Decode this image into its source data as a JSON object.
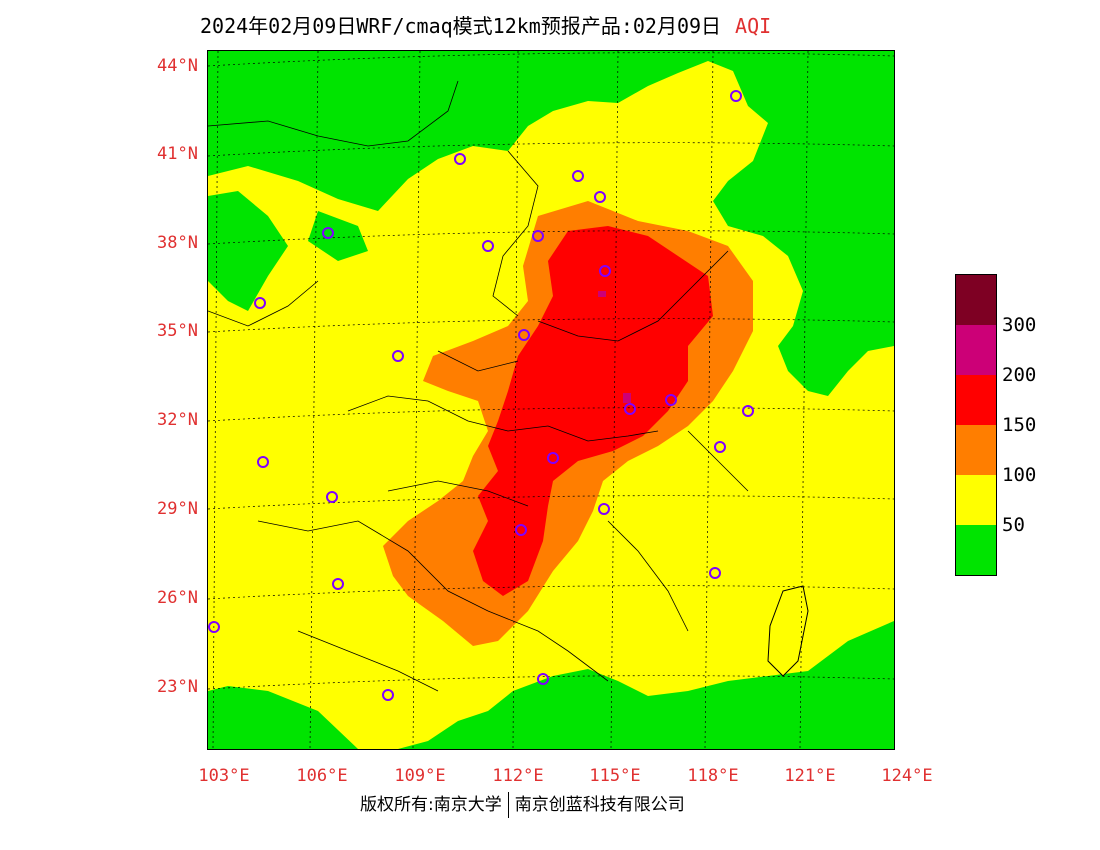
{
  "title": {
    "main": "2024年02月09日WRF/cmaq模式12km预报产品:02月09日",
    "variable": "AQI"
  },
  "lat_labels": [
    "44°N",
    "41°N",
    "38°N",
    "35°N",
    "32°N",
    "29°N",
    "26°N",
    "23°N"
  ],
  "lon_labels": [
    "103°E",
    "106°E",
    "109°E",
    "112°E",
    "115°E",
    "118°E",
    "121°E",
    "124°E"
  ],
  "legend": {
    "labels": [
      "300",
      "200",
      "150",
      "100",
      "50"
    ],
    "colors": {
      "l0_50": "#00e400",
      "l50_100": "#ffff00",
      "l100_150": "#ff7e00",
      "l150_200": "#ff0000",
      "l200_300": "#cc0077",
      "l300plus": "#7e0023"
    }
  },
  "footer": {
    "left": "版权所有:南京大学",
    "right": "南京创蓝科技有限公司"
  }
}
